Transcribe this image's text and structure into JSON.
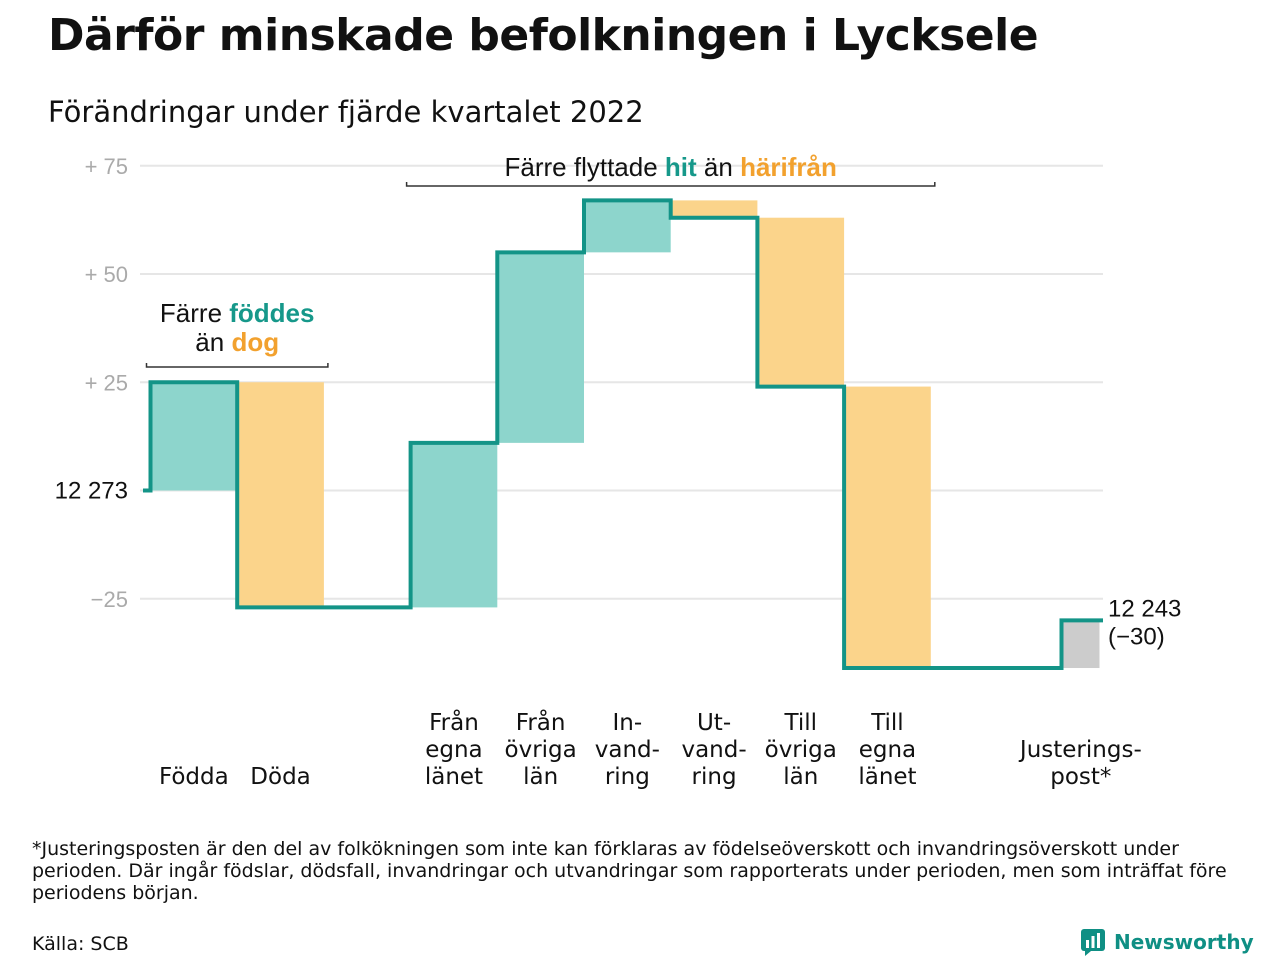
{
  "title": "Därför minskade befolkningen i Lycksele",
  "subtitle": "Förändringar under fjärde kvartalet 2022",
  "footnote": "*Justeringsposten är den del av folkökningen som inte kan förklaras av födelseöverskott och invandringsöverskott under perioden. Där ingår födslar, dödsfall, invandringar och utvandringar som rapporterats under perioden, men som inträffat före periodens början.",
  "source": "Källa: SCB",
  "brand": {
    "name": "Newsworthy",
    "icon": "newsworthy-logo-icon"
  },
  "colors": {
    "increase": "#8dd5cc",
    "decrease": "#fbd48b",
    "adjustment": "#cccccc",
    "line": "#139487",
    "teal_text": "#16988a",
    "orange_text": "#f2a12e",
    "grid": "#e6e6e6",
    "tick": "#aaaaaa"
  },
  "chart_data": {
    "type": "waterfall",
    "start": {
      "value": 12273,
      "label": "12 273"
    },
    "end": {
      "value": 12243,
      "label": "12 243",
      "change_label": "(−30)"
    },
    "y_ticks": [
      {
        "value": 75,
        "label": "+ 75"
      },
      {
        "value": 50,
        "label": "+ 50"
      },
      {
        "value": 25,
        "label": "+ 25"
      },
      {
        "value": -25,
        "label": "−25"
      }
    ],
    "ylim": [
      -40,
      78
    ],
    "steps": [
      {
        "label": "Födda",
        "value": 25,
        "kind": "increase"
      },
      {
        "label": "Döda",
        "value": -52,
        "kind": "decrease"
      },
      {
        "label": "Från\negna\nlänet",
        "value": 38,
        "kind": "increase"
      },
      {
        "label": "Från\növriga\nlän",
        "value": 44,
        "kind": "increase"
      },
      {
        "label": "In-\nvand-\nring",
        "value": 12,
        "kind": "increase"
      },
      {
        "label": "Ut-\nvand-\nring",
        "value": -4,
        "kind": "decrease"
      },
      {
        "label": "Till\növriga\nlän",
        "value": -39,
        "kind": "decrease"
      },
      {
        "label": "Till\negna\nlänet",
        "value": -65,
        "kind": "decrease"
      },
      {
        "label": "Justerings-\npost*",
        "value": 11,
        "kind": "adjustment"
      }
    ],
    "annotations": [
      {
        "prefix": "Färre ",
        "hl1": "föddes",
        "mid": "än ",
        "hl2": "dog",
        "spans": [
          0,
          1
        ]
      },
      {
        "prefix": "Färre flyttade ",
        "hl1": "hit",
        "mid": " än ",
        "hl2": "härifrån",
        "spans": [
          2,
          7
        ]
      }
    ]
  }
}
